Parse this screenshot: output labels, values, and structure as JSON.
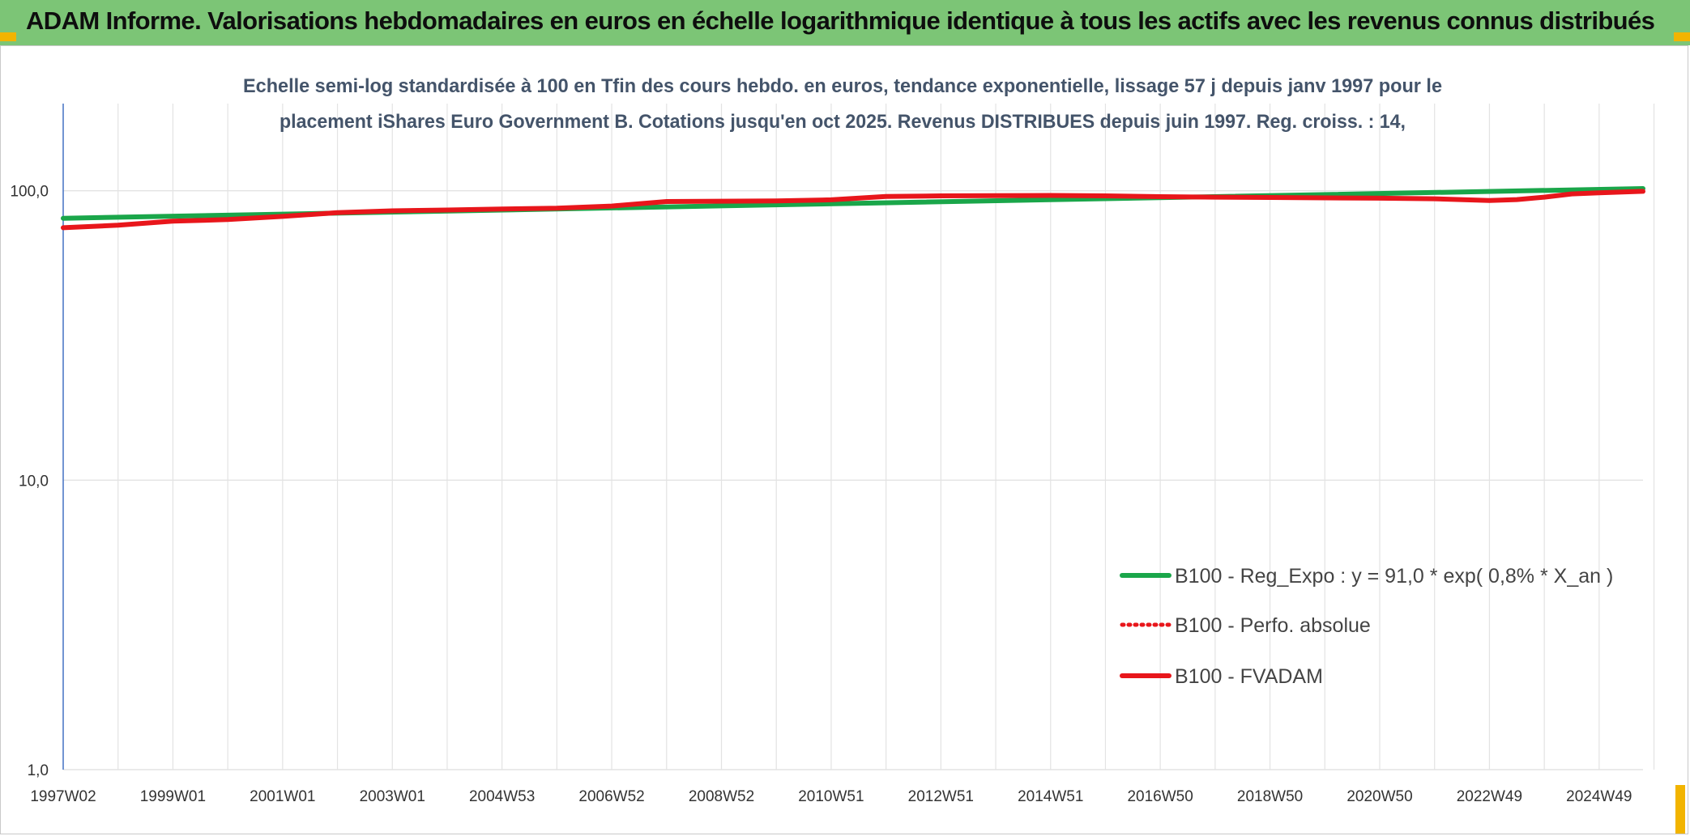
{
  "header": {
    "title": "ADAM Informe. Valorisations hebdomadaires en euros en échelle logarithmique identique à tous les actifs avec les revenus connus distribués"
  },
  "colors": {
    "header_band": "#7cc576",
    "accent_corner": "#f2b400",
    "regression_series": "#1aa64a",
    "fvadam_series": "#e8161b",
    "perfo_series": "#e8161b",
    "grid": "#e3e3e3",
    "axis_text": "#333333",
    "title_text": "#44546a"
  },
  "chart_data": {
    "type": "line",
    "title_line1": "Echelle semi-log standardisée à 100 en Tfin des cours hebdo. en euros, tendance exponentielle, lissage 57 j depuis janv 1997 pour le",
    "title_line2": "placement iShares Euro Government B. Cotations jusqu'en oct 2025. Revenus DISTRIBUES depuis juin 1997. Reg. croiss. : 14,",
    "y_scale": "log",
    "ylim": [
      1,
      200
    ],
    "y_ticks": [
      {
        "value": 1,
        "label": "1,0"
      },
      {
        "value": 10,
        "label": "10,0"
      },
      {
        "value": 100,
        "label": "100,0"
      }
    ],
    "x_range": [
      1997.0,
      2025.8
    ],
    "x_tick_labels": [
      "1997W02",
      "1999W01",
      "2001W01",
      "2003W01",
      "2004W53",
      "2006W52",
      "2008W52",
      "2010W51",
      "2012W51",
      "2014W51",
      "2016W50",
      "2018W50",
      "2020W50",
      "2022W49",
      "2024W49"
    ],
    "x_tick_years": [
      1997.0,
      1999.0,
      2001.0,
      2003.0,
      2005.0,
      2007.0,
      2009.0,
      2011.0,
      2013.0,
      2015.0,
      2017.0,
      2019.0,
      2021.0,
      2023.0,
      2025.0
    ],
    "grid": true,
    "legend_position": "bottom-right",
    "series": [
      {
        "name": "B100 - Reg_Expo : y = 91,0 * exp( 0,8% *  X_an )",
        "style": "solid-thick",
        "x": [
          1997.0,
          2025.8
        ],
        "y": [
          80.3,
          101.7
        ]
      },
      {
        "name": "B100 - Perfo. absolue",
        "style": "dotted",
        "x": [],
        "y": []
      },
      {
        "name": "B100 - FVADAM",
        "style": "solid-thick",
        "x": [
          1997.0,
          1998.0,
          1999.0,
          2000.0,
          2001.0,
          2002.0,
          2003.0,
          2004.0,
          2005.0,
          2006.0,
          2007.0,
          2008.0,
          2009.0,
          2010.0,
          2011.0,
          2012.0,
          2013.0,
          2014.0,
          2015.0,
          2016.0,
          2017.0,
          2018.0,
          2019.0,
          2020.0,
          2021.0,
          2022.0,
          2023.0,
          2023.5,
          2024.0,
          2024.5,
          2025.0,
          2025.8
        ],
        "y": [
          74.5,
          76.0,
          78.5,
          79.5,
          81.5,
          84.0,
          85.2,
          85.8,
          86.5,
          87.0,
          88.5,
          91.8,
          92.0,
          92.2,
          93.0,
          95.5,
          96.0,
          96.2,
          96.3,
          96.0,
          95.4,
          95.0,
          94.8,
          94.5,
          94.2,
          93.8,
          92.5,
          93.2,
          95.0,
          97.5,
          98.3,
          99.5
        ]
      }
    ]
  }
}
